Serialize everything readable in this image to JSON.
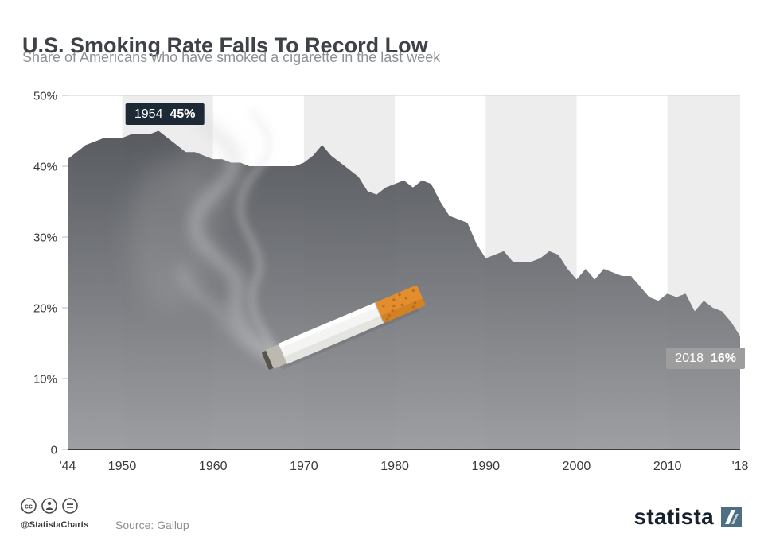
{
  "header": {
    "title": "U.S. Smoking Rate Falls To Record Low",
    "subtitle": "Share of Americans who have smoked a cigarette in the last week"
  },
  "footer": {
    "handle": "@StatistaCharts",
    "source": "Source: Gallup",
    "brand": "statista",
    "license_icons": [
      "cc-icon",
      "attribution-person-icon",
      "no-derivatives-equals-icon"
    ]
  },
  "chart_data": {
    "type": "area",
    "title": "U.S. Smoking Rate Falls To Record Low",
    "xlabel": "",
    "ylabel": "",
    "xlim": [
      1944,
      2018
    ],
    "ylim": [
      0,
      50
    ],
    "grid": "top gridline only, alternating decade background bands",
    "x": [
      1944,
      1945,
      1946,
      1947,
      1948,
      1949,
      1950,
      1951,
      1952,
      1953,
      1954,
      1955,
      1956,
      1957,
      1958,
      1959,
      1960,
      1961,
      1962,
      1963,
      1964,
      1965,
      1966,
      1967,
      1968,
      1969,
      1970,
      1971,
      1972,
      1973,
      1974,
      1975,
      1976,
      1977,
      1978,
      1979,
      1980,
      1981,
      1982,
      1983,
      1984,
      1985,
      1986,
      1987,
      1988,
      1989,
      1990,
      1991,
      1992,
      1993,
      1994,
      1995,
      1996,
      1997,
      1998,
      1999,
      2000,
      2001,
      2002,
      2003,
      2004,
      2005,
      2006,
      2007,
      2008,
      2009,
      2010,
      2011,
      2012,
      2013,
      2014,
      2015,
      2016,
      2017,
      2018
    ],
    "values": [
      41,
      42,
      43,
      43.5,
      44,
      44,
      44,
      44.5,
      44.5,
      44.5,
      45,
      44,
      43,
      42,
      42,
      41.5,
      41,
      41,
      40.5,
      40.5,
      40,
      40,
      40,
      40,
      40,
      40,
      40.5,
      41.5,
      43,
      41.5,
      40.5,
      39.5,
      38.5,
      36.5,
      36,
      37,
      37.5,
      38,
      37,
      38,
      37.5,
      35,
      33,
      32.5,
      32,
      29,
      27,
      27.5,
      28,
      26.5,
      26.5,
      26.5,
      27,
      28,
      27.5,
      25.5,
      24,
      25.5,
      24,
      25.5,
      25,
      24.5,
      24.5,
      23,
      21.5,
      21,
      22,
      21.5,
      22,
      19.5,
      21,
      20,
      19.5,
      18,
      16
    ],
    "x_ticks": [
      {
        "v": 1944,
        "label": "'44"
      },
      {
        "v": 1950,
        "label": "1950"
      },
      {
        "v": 1960,
        "label": "1960"
      },
      {
        "v": 1970,
        "label": "1970"
      },
      {
        "v": 1980,
        "label": "1980"
      },
      {
        "v": 1990,
        "label": "1990"
      },
      {
        "v": 2000,
        "label": "2000"
      },
      {
        "v": 2010,
        "label": "2010"
      },
      {
        "v": 2018,
        "label": "'18"
      }
    ],
    "y_ticks": [
      {
        "v": 0,
        "label": "0"
      },
      {
        "v": 10,
        "label": "10%"
      },
      {
        "v": 20,
        "label": "20%"
      },
      {
        "v": 30,
        "label": "30%"
      },
      {
        "v": 40,
        "label": "40%"
      },
      {
        "v": 50,
        "label": "50%"
      }
    ],
    "annotations": [
      {
        "year": 1954,
        "value": 45,
        "year_label": "1954",
        "value_label": "45%",
        "variant": "dark",
        "position": "above"
      },
      {
        "year": 2018,
        "value": 16,
        "year_label": "2018",
        "value_label": "16%",
        "variant": "light",
        "position": "below-left"
      }
    ],
    "colors": {
      "area_top": "#4e5156",
      "area_bottom": "#97999d",
      "band": "#ededed",
      "gridline": "#d2d2d2",
      "axis": "#3c3c3c",
      "tick_text": "#3a3a3a",
      "badge_dark": "#1d2935",
      "badge_light": "#9d9d9d",
      "cigarette_orange": "#e28e2e",
      "smoke": "#d8d8d8",
      "brand_navy": "#15222e"
    }
  }
}
